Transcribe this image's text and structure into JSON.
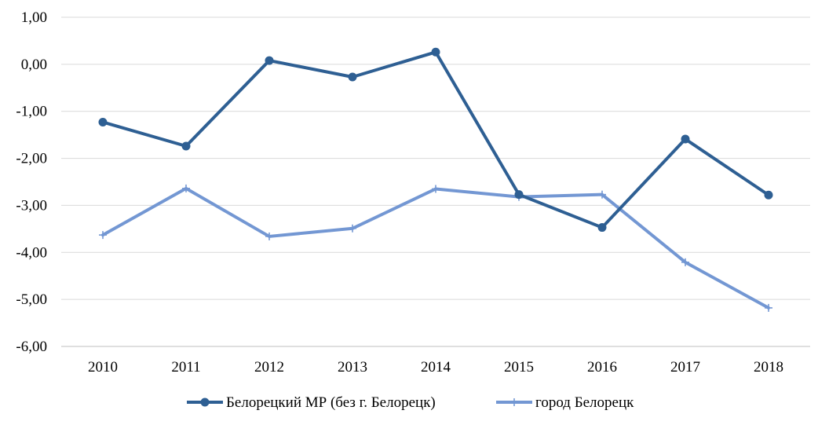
{
  "chart_data": {
    "type": "line",
    "title": "",
    "xlabel": "",
    "ylabel": "",
    "categories": [
      "2010",
      "2011",
      "2012",
      "2013",
      "2014",
      "2015",
      "2016",
      "2017",
      "2018"
    ],
    "ylim": [
      -6,
      1
    ],
    "yticks": [
      1,
      0,
      -1,
      -2,
      -3,
      -4,
      -5,
      -6
    ],
    "ytick_labels": [
      "1,00",
      "0,00",
      "-1,00",
      "-2,00",
      "-3,00",
      "-4,00",
      "-5,00",
      "-6,00"
    ],
    "grid": true,
    "legend_position": "bottom",
    "series": [
      {
        "name": "Белорецкий МР (без г. Белорецк)",
        "values": [
          -1.23,
          -1.74,
          0.08,
          -0.27,
          0.26,
          -2.77,
          -3.47,
          -1.59,
          -2.78
        ],
        "color": "#2e5f93",
        "marker": "circle"
      },
      {
        "name": "город Белорецк",
        "values": [
          -3.63,
          -2.64,
          -3.66,
          -3.49,
          -2.65,
          -2.82,
          -2.77,
          -4.21,
          -5.18
        ],
        "color": "#7397d3",
        "marker": "plus"
      }
    ]
  }
}
